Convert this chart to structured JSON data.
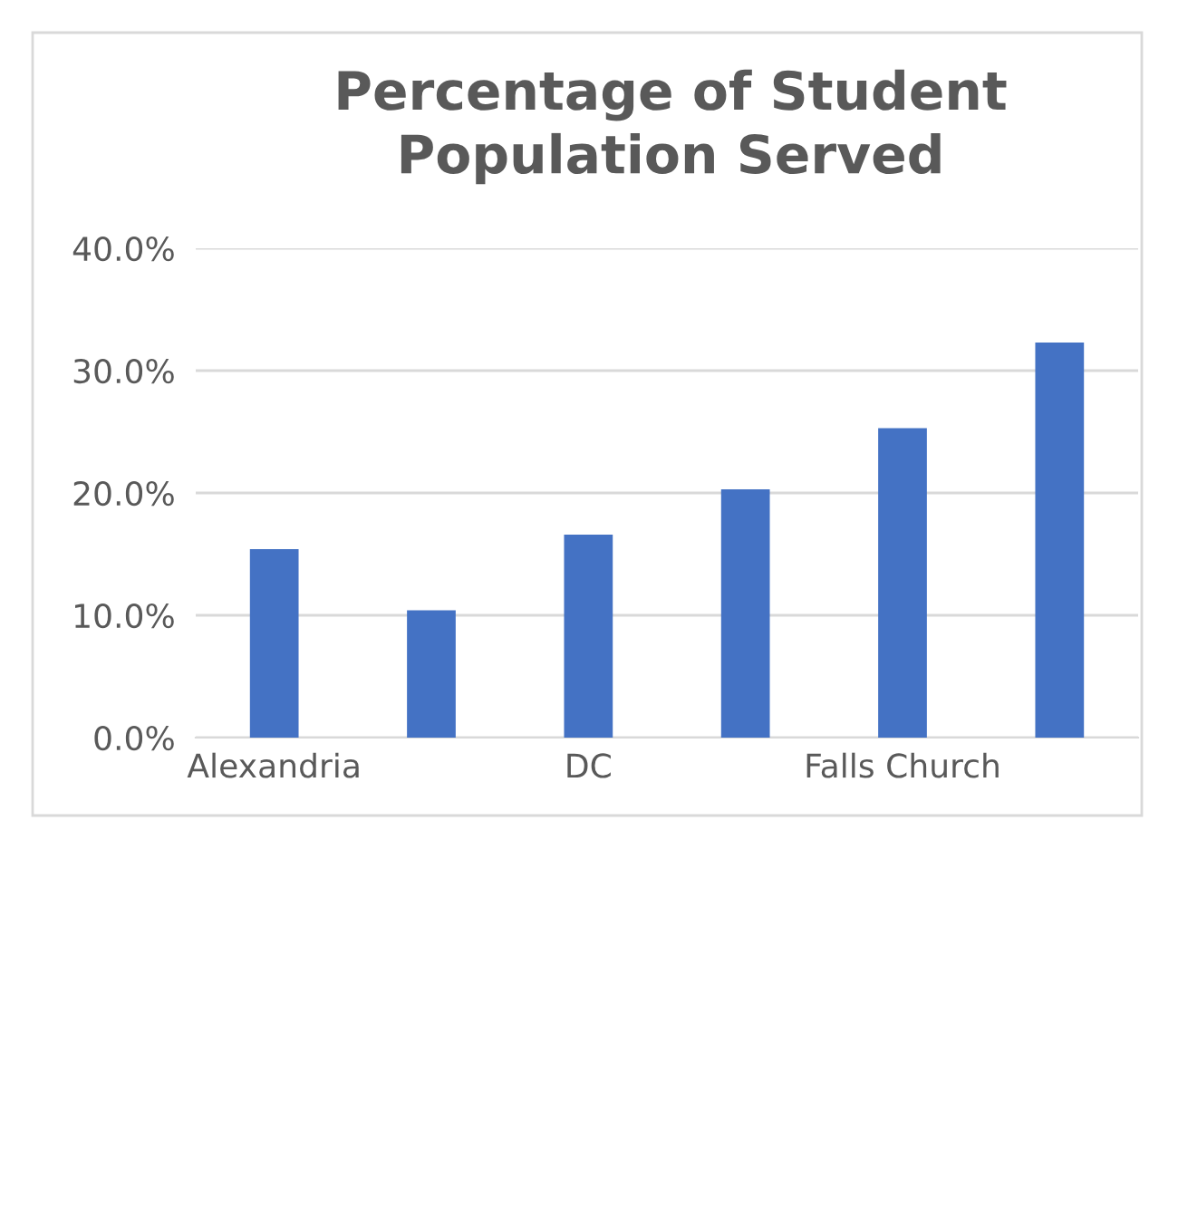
{
  "chart_data": {
    "type": "bar",
    "title": "Percentage of Student Population Served",
    "categories": [
      "Alexandria",
      null,
      "DC",
      null,
      "Falls Church",
      null
    ],
    "values": [
      15.4,
      10.4,
      16.6,
      20.3,
      25.3,
      32.3
    ],
    "color": "#4472c4",
    "ylim": [
      0,
      40
    ],
    "yticks": [
      {
        "value": 0,
        "label": "0.0%"
      },
      {
        "value": 10,
        "label": "10.0%"
      },
      {
        "value": 20,
        "label": "20.0%"
      },
      {
        "value": 30,
        "label": "30.0%"
      },
      {
        "value": 40,
        "label": "40.0%"
      }
    ],
    "grid": "y",
    "legend": false
  }
}
